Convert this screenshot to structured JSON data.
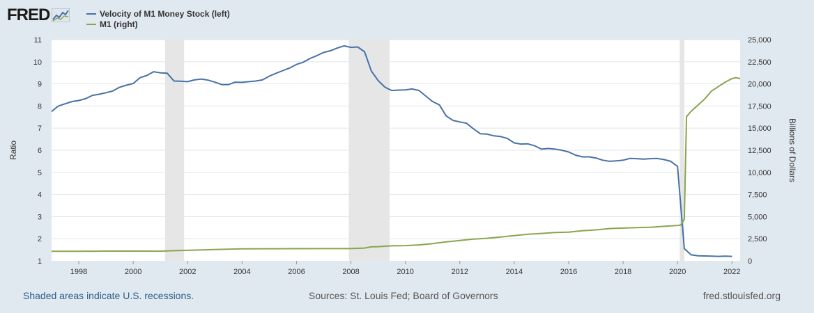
{
  "logo": {
    "text": "FRED",
    "icon": "line-chart-icon"
  },
  "chart_data": {
    "type": "line",
    "title": "",
    "xlabel": "",
    "ylabel_left": "Ratio",
    "ylabel_right": "Billions of Dollars",
    "xlim": [
      1997.0,
      2022.3
    ],
    "ylim_left": [
      1,
      11
    ],
    "ylim_right": [
      0,
      25000
    ],
    "x_ticks": [
      1998,
      2000,
      2002,
      2004,
      2006,
      2008,
      2010,
      2012,
      2014,
      2016,
      2018,
      2020,
      2022
    ],
    "y_ticks_left": [
      1,
      2,
      3,
      4,
      5,
      6,
      7,
      8,
      9,
      10,
      11
    ],
    "y_ticks_left_labels": [
      "1",
      "2",
      "3",
      "4",
      "5",
      "6",
      "7",
      "8",
      "9",
      "10",
      "11"
    ],
    "y_ticks_right": [
      0,
      2500,
      5000,
      7500,
      10000,
      12500,
      15000,
      17500,
      20000,
      22500,
      25000
    ],
    "y_ticks_right_labels": [
      "0",
      "2,500",
      "5,000",
      "7,500",
      "10,000",
      "12,500",
      "15,000",
      "17,500",
      "20,000",
      "22,500",
      "25,000"
    ],
    "grid": true,
    "legend_position": "top-left",
    "recessions": [
      [
        2001.17,
        2001.87
      ],
      [
        2007.92,
        2009.42
      ],
      [
        2020.08,
        2020.25
      ]
    ],
    "series": [
      {
        "name": "Velocity of M1 Money Stock (left)",
        "axis": "left",
        "color": "#4572a7",
        "x": [
          1997.0,
          1997.25,
          1997.5,
          1997.75,
          1998.0,
          1998.25,
          1998.5,
          1998.75,
          1999.0,
          1999.25,
          1999.5,
          1999.75,
          2000.0,
          2000.25,
          2000.5,
          2000.75,
          2001.0,
          2001.25,
          2001.5,
          2001.75,
          2002.0,
          2002.25,
          2002.5,
          2002.75,
          2003.0,
          2003.25,
          2003.5,
          2003.75,
          2004.0,
          2004.25,
          2004.5,
          2004.75,
          2005.0,
          2005.25,
          2005.5,
          2005.75,
          2006.0,
          2006.25,
          2006.5,
          2006.75,
          2007.0,
          2007.25,
          2007.5,
          2007.75,
          2008.0,
          2008.25,
          2008.5,
          2008.75,
          2009.0,
          2009.25,
          2009.5,
          2009.75,
          2010.0,
          2010.25,
          2010.5,
          2010.75,
          2011.0,
          2011.25,
          2011.5,
          2011.75,
          2012.0,
          2012.25,
          2012.5,
          2012.75,
          2013.0,
          2013.25,
          2013.5,
          2013.75,
          2014.0,
          2014.25,
          2014.5,
          2014.75,
          2015.0,
          2015.25,
          2015.5,
          2015.75,
          2016.0,
          2016.25,
          2016.5,
          2016.75,
          2017.0,
          2017.25,
          2017.5,
          2017.75,
          2018.0,
          2018.25,
          2018.5,
          2018.75,
          2019.0,
          2019.25,
          2019.5,
          2019.75,
          2020.0,
          2020.25,
          2020.5,
          2020.75,
          2021.0,
          2021.25,
          2021.5,
          2021.75,
          2022.0
        ],
        "values": [
          7.75,
          8.0,
          8.1,
          8.2,
          8.25,
          8.33,
          8.48,
          8.53,
          8.6,
          8.68,
          8.85,
          8.94,
          9.02,
          9.28,
          9.38,
          9.55,
          9.5,
          9.48,
          9.13,
          9.12,
          9.1,
          9.18,
          9.22,
          9.17,
          9.08,
          8.97,
          8.97,
          9.08,
          9.07,
          9.1,
          9.13,
          9.18,
          9.35,
          9.48,
          9.6,
          9.72,
          9.88,
          9.98,
          10.15,
          10.28,
          10.42,
          10.5,
          10.62,
          10.72,
          10.65,
          10.67,
          10.45,
          9.58,
          9.15,
          8.85,
          8.7,
          8.72,
          8.73,
          8.77,
          8.7,
          8.45,
          8.2,
          8.05,
          7.55,
          7.35,
          7.28,
          7.22,
          6.97,
          6.75,
          6.73,
          6.65,
          6.62,
          6.53,
          6.33,
          6.28,
          6.29,
          6.2,
          6.05,
          6.08,
          6.05,
          6.0,
          5.92,
          5.78,
          5.7,
          5.7,
          5.65,
          5.55,
          5.5,
          5.52,
          5.55,
          5.63,
          5.62,
          5.6,
          5.62,
          5.63,
          5.58,
          5.5,
          5.27,
          1.55,
          1.27,
          1.23,
          1.22,
          1.21,
          1.2,
          1.21,
          1.2
        ]
      },
      {
        "name": "M1 (right)",
        "axis": "right",
        "color": "#89a54e",
        "x": [
          1997.0,
          1998.0,
          1999.0,
          2000.0,
          2001.0,
          2001.5,
          2002.0,
          2003.0,
          2004.0,
          2005.0,
          2006.0,
          2007.0,
          2008.0,
          2008.5,
          2008.75,
          2009.0,
          2009.5,
          2010.0,
          2010.5,
          2011.0,
          2011.5,
          2012.0,
          2012.5,
          2013.0,
          2013.5,
          2014.0,
          2014.5,
          2015.0,
          2015.5,
          2016.0,
          2016.5,
          2017.0,
          2017.5,
          2018.0,
          2018.5,
          2019.0,
          2019.5,
          2020.0,
          2020.12,
          2020.25,
          2020.33,
          2020.5,
          2020.75,
          2021.0,
          2021.25,
          2021.5,
          2021.75,
          2022.0,
          2022.15,
          2022.3
        ],
        "values": [
          1075,
          1080,
          1100,
          1100,
          1090,
          1150,
          1190,
          1280,
          1360,
          1370,
          1375,
          1380,
          1385,
          1450,
          1580,
          1600,
          1700,
          1720,
          1800,
          1950,
          2150,
          2300,
          2450,
          2550,
          2700,
          2850,
          3000,
          3100,
          3200,
          3250,
          3400,
          3500,
          3650,
          3700,
          3750,
          3800,
          3900,
          4000,
          4050,
          4700,
          16300,
          16900,
          17600,
          18300,
          19200,
          19700,
          20200,
          20600,
          20700,
          20600
        ]
      }
    ]
  },
  "footer": {
    "recession_note": "Shaded areas indicate U.S. recessions.",
    "sources": "Sources: St. Louis Fed; Board of Governors",
    "url": "fred.stlouisfed.org"
  }
}
